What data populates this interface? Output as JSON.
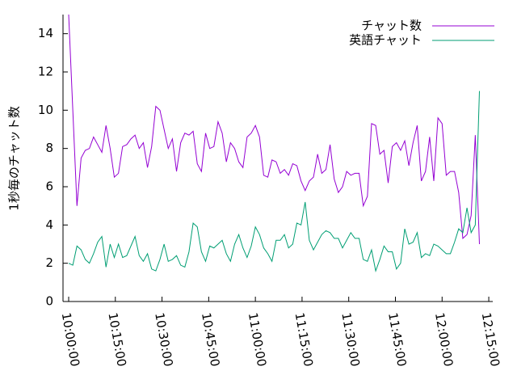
{
  "chart_data": {
    "type": "line",
    "y_label": "1秒毎のチャット数",
    "x": [
      "10:00:00",
      "10:01:20",
      "10:02:40",
      "10:04:00",
      "10:05:20",
      "10:06:40",
      "10:08:00",
      "10:09:20",
      "10:10:40",
      "10:12:00",
      "10:13:20",
      "10:14:40",
      "10:16:00",
      "10:17:20",
      "10:18:40",
      "10:20:00",
      "10:21:20",
      "10:22:40",
      "10:24:00",
      "10:25:20",
      "10:26:40",
      "10:28:00",
      "10:29:20",
      "10:30:40",
      "10:32:00",
      "10:33:20",
      "10:34:40",
      "10:36:00",
      "10:37:20",
      "10:38:40",
      "10:40:00",
      "10:41:20",
      "10:42:40",
      "10:44:00",
      "10:45:20",
      "10:46:40",
      "10:48:00",
      "10:49:20",
      "10:50:40",
      "10:52:00",
      "10:53:20",
      "10:54:40",
      "10:56:00",
      "10:57:20",
      "10:58:40",
      "11:00:00",
      "11:01:20",
      "11:02:40",
      "11:04:00",
      "11:05:20",
      "11:06:40",
      "11:08:00",
      "11:09:20",
      "11:10:40",
      "11:12:00",
      "11:13:20",
      "11:14:40",
      "11:16:00",
      "11:17:20",
      "11:18:40",
      "11:20:00",
      "11:21:20",
      "11:22:40",
      "11:24:00",
      "11:25:20",
      "11:26:40",
      "11:28:00",
      "11:29:20",
      "11:30:40",
      "11:32:00",
      "11:33:20",
      "11:34:40",
      "11:36:00",
      "11:37:20",
      "11:38:40",
      "11:40:00",
      "11:41:20",
      "11:42:40",
      "11:44:00",
      "11:45:20",
      "11:46:40",
      "11:48:00",
      "11:49:20",
      "11:50:40",
      "11:52:00",
      "11:53:20",
      "11:54:40",
      "11:56:00",
      "11:57:20",
      "11:58:40",
      "12:00:00",
      "12:01:20",
      "12:02:40",
      "12:04:00",
      "12:05:20",
      "12:06:40",
      "12:08:00",
      "12:09:20",
      "12:10:40",
      "12:12:00"
    ],
    "series": [
      {
        "name": "チャット数",
        "color": "#9400d3",
        "values": [
          15,
          10,
          5,
          7.5,
          7.9,
          8,
          8.6,
          8.2,
          7.8,
          9.2,
          8,
          6.5,
          6.7,
          8.1,
          8.2,
          8.5,
          8.7,
          8,
          8.3,
          7,
          8.1,
          10.2,
          10,
          9,
          8,
          8.5,
          6.8,
          8.3,
          8.8,
          8.7,
          8.9,
          7.2,
          6.8,
          8.8,
          8,
          8.1,
          9.4,
          8.8,
          7.3,
          8.3,
          8,
          7.3,
          7,
          8.6,
          8.8,
          9.2,
          8.6,
          6.6,
          6.5,
          7.4,
          7.3,
          6.7,
          6.9,
          6.6,
          7.2,
          7.1,
          6.3,
          5.8,
          6.3,
          6.5,
          7.7,
          6.7,
          6.9,
          8.2,
          6.4,
          5.7,
          6,
          6.8,
          6.6,
          6.7,
          6.7,
          5,
          5.5,
          9.3,
          9.2,
          7.7,
          7.9,
          6.2,
          8.1,
          8.3,
          7.9,
          8.4,
          7.1,
          8.3,
          9.2,
          6.3,
          6.8,
          8.6,
          6.3,
          9.6,
          9.3,
          6.6,
          6.8,
          6.8,
          5.7,
          3.3,
          3.5,
          4.5,
          8.7,
          3
        ]
      },
      {
        "name": "英語チャット",
        "color": "#009e73",
        "values": [
          2,
          1.9,
          2.9,
          2.7,
          2.2,
          2,
          2.5,
          3.1,
          3.4,
          1.8,
          3,
          2.3,
          3,
          2.3,
          2.4,
          2.9,
          3.4,
          2.4,
          2.1,
          2.5,
          1.7,
          1.6,
          2.2,
          3,
          2.1,
          2.2,
          2.4,
          1.9,
          1.8,
          2.6,
          4.1,
          3.9,
          2.6,
          2.1,
          2.9,
          2.8,
          3,
          3.2,
          2.5,
          2.1,
          3,
          3.5,
          2.8,
          2.3,
          2.9,
          3.9,
          3.5,
          2.8,
          2.5,
          2.1,
          3.2,
          3.2,
          3.5,
          2.8,
          3,
          4.1,
          4,
          5.2,
          3.2,
          2.7,
          3.1,
          3.5,
          3.7,
          3.6,
          3.3,
          3.3,
          2.8,
          3.2,
          3.6,
          3.3,
          3.3,
          2.2,
          2.1,
          2.7,
          1.6,
          2.2,
          2.9,
          2.6,
          2.6,
          1.7,
          2,
          3.8,
          3,
          3.1,
          3.6,
          2.3,
          2.5,
          2.4,
          3,
          2.9,
          2.7,
          2.5,
          2.5,
          3.1,
          3.8,
          3.6,
          4.9,
          3.6,
          4,
          11
        ]
      }
    ],
    "xlim": [
      "09:58:11",
      "12:16:17"
    ],
    "xticks": [
      "10:00:00",
      "10:15:00",
      "10:30:00",
      "10:45:00",
      "11:00:00",
      "11:15:00",
      "11:30:00",
      "11:45:00",
      "12:00:00",
      "12:15:00"
    ],
    "ylim": [
      0,
      15
    ],
    "yticks": [
      0,
      2,
      4,
      6,
      8,
      10,
      12,
      14
    ],
    "legend": "top-right"
  }
}
